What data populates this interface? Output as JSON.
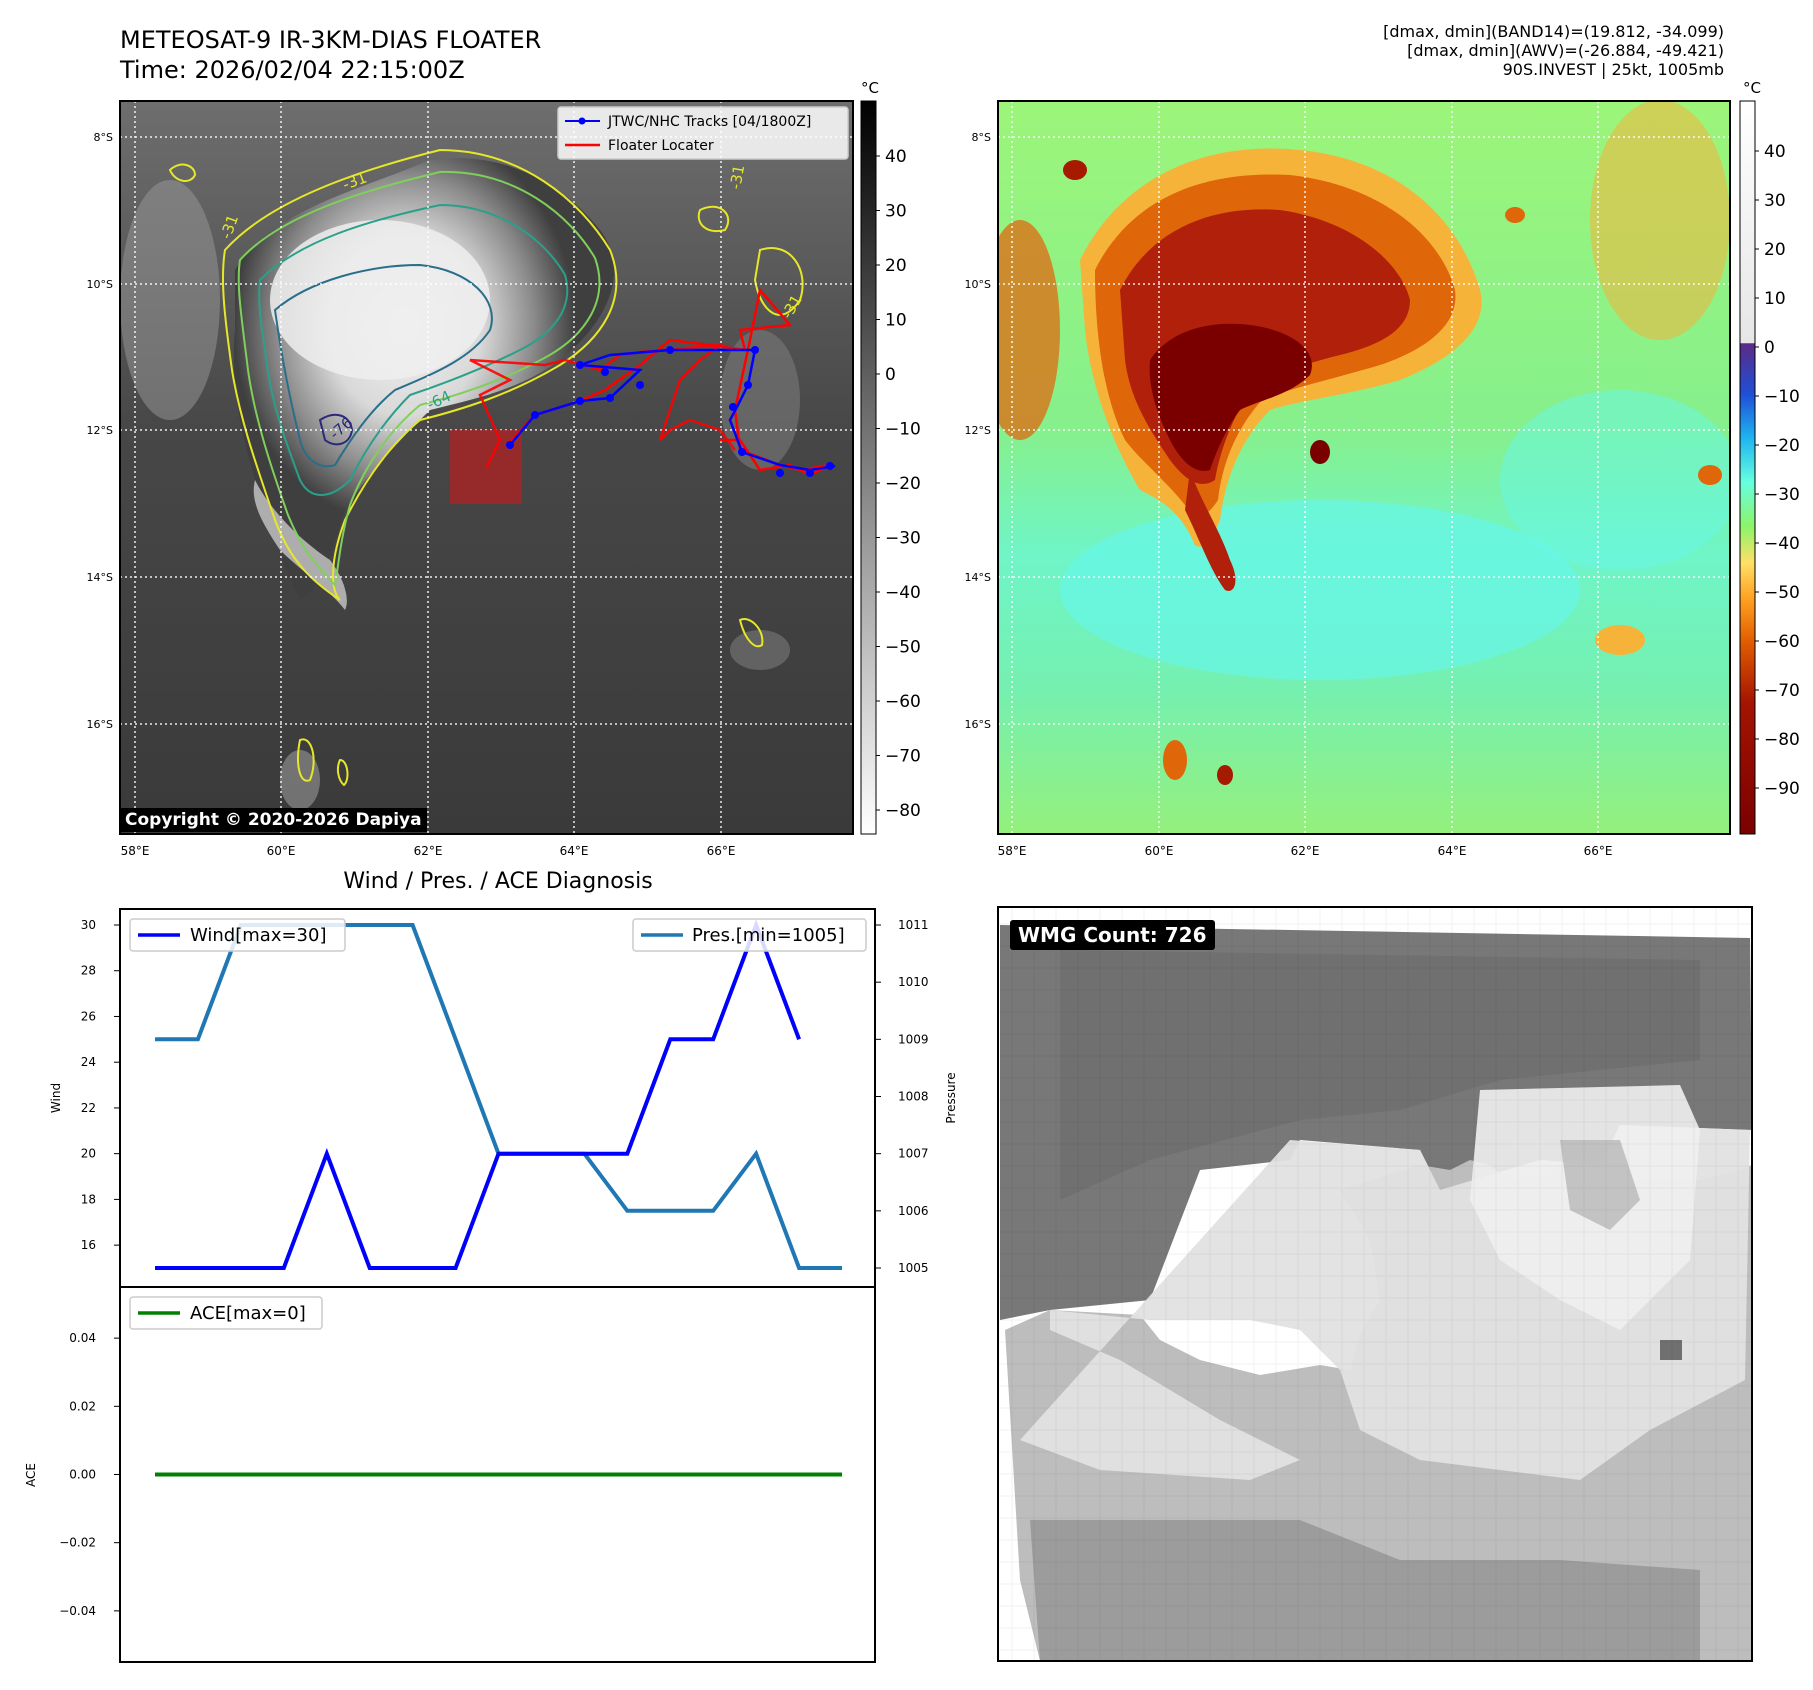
{
  "header": {
    "title": "METEOSAT-9 IR-3KM-DIAS FLOATER",
    "time": "Time: 2026/02/04 22:15:00Z",
    "info_lines": [
      "[dmax, dmin](BAND14)=(19.812, -34.099)",
      "[dmax, dmin](AWV)=(-26.884, -49.421)",
      "90S.INVEST | 25kt, 1005mb"
    ]
  },
  "ir_panel": {
    "unit": "°C",
    "colorbar_ticks": [
      "40",
      "30",
      "20",
      "10",
      "0",
      "−10",
      "−20",
      "−30",
      "−40",
      "−50",
      "−60",
      "−70",
      "−80"
    ],
    "lat_labels": [
      "8°S",
      "10°S",
      "12°S",
      "14°S",
      "16°S"
    ],
    "lon_labels": [
      "58°E",
      "60°E",
      "62°E",
      "64°E",
      "66°E"
    ],
    "legend": {
      "tracks": "JTWC/NHC Tracks [04/1800Z]",
      "locater": "Floater Locater"
    },
    "contour_labels": [
      "-31",
      "-31",
      "-31",
      "-31",
      "-64",
      "-76"
    ],
    "copyright": "Copyright © 2020-2026 Dapiya"
  },
  "enhanced_panel": {
    "unit": "°C",
    "colorbar_ticks": [
      "40",
      "30",
      "20",
      "10",
      "0",
      "−10",
      "−20",
      "−30",
      "−40",
      "−50",
      "−60",
      "−70",
      "−80",
      "−90"
    ],
    "lat_labels": [
      "8°S",
      "10°S",
      "12°S",
      "14°S",
      "16°S"
    ],
    "lon_labels": [
      "58°E",
      "60°E",
      "62°E",
      "64°E",
      "66°E"
    ]
  },
  "wmg_panel": {
    "badge": "WMG Count: 726"
  },
  "colors": {
    "wind": "#0000ff",
    "pressure": "#1f77b4",
    "ace": "#008000",
    "track": "#0000ff",
    "locater": "#ff0000"
  },
  "chart_data": [
    {
      "type": "line",
      "title": "Wind / Pres. / ACE Diagnosis",
      "ylabel": "Wind",
      "y2label": "Pressure",
      "ylim": [
        15,
        30
      ],
      "y2lim": [
        1005,
        1011
      ],
      "yticks": [
        16,
        18,
        20,
        22,
        24,
        26,
        28,
        30
      ],
      "y2ticks": [
        1005,
        1006,
        1007,
        1008,
        1009,
        1010,
        1011
      ],
      "x": [
        0,
        1,
        2,
        3,
        4,
        5,
        6,
        7,
        8,
        9,
        10,
        11,
        12,
        13,
        14,
        15,
        16
      ],
      "series": [
        {
          "name": "Wind[max=30]",
          "axis": "left",
          "values": [
            15,
            15,
            15,
            15,
            20,
            15,
            15,
            15,
            20,
            20,
            20,
            20,
            25,
            25,
            30,
            25,
            null
          ]
        },
        {
          "name": "Pres.[min=1005]",
          "axis": "right",
          "values": [
            1009,
            1009,
            1011,
            1011,
            1011,
            1011,
            1011,
            1009,
            1007,
            1007,
            1007,
            1006,
            1006,
            1006,
            1007,
            1005,
            1005
          ]
        }
      ],
      "legend": [
        "top-left",
        "top-right"
      ]
    },
    {
      "type": "line",
      "ylabel": "ACE",
      "ylim": [
        -0.055,
        0.055
      ],
      "yticks": [
        "0.04",
        "0.02",
        "0.00",
        "−0.02",
        "−0.04"
      ],
      "x": [
        0,
        16
      ],
      "series": [
        {
          "name": "ACE[max=0]",
          "values": [
            0,
            0
          ]
        }
      ],
      "legend": "top-left"
    }
  ]
}
